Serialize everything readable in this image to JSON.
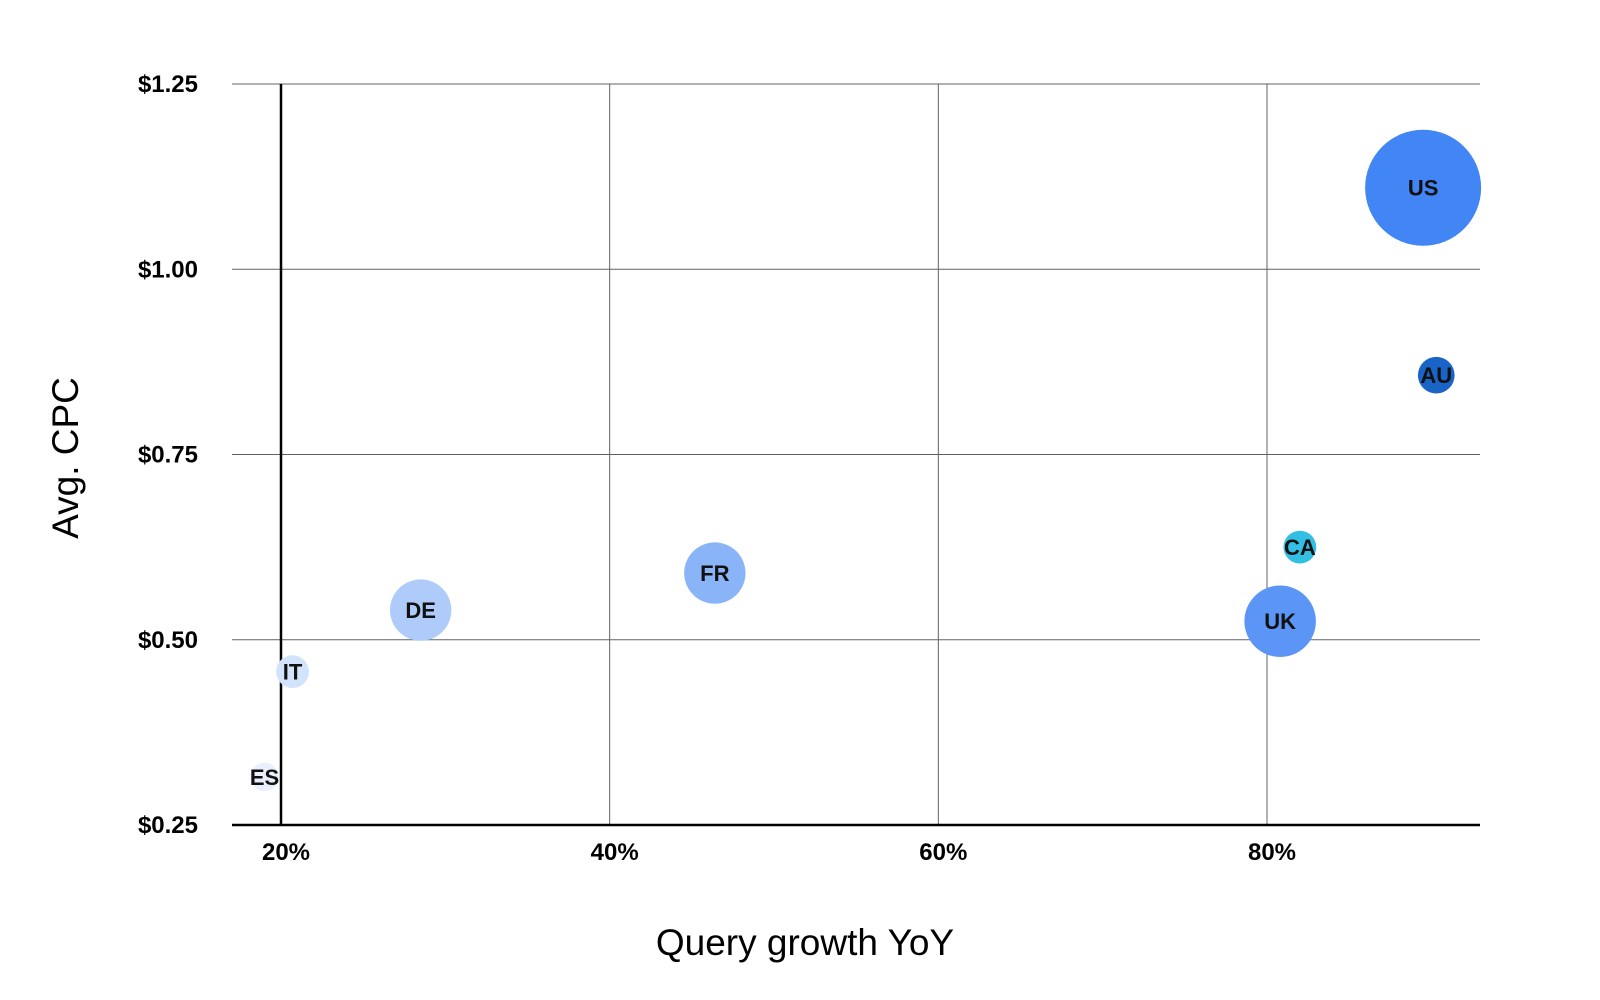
{
  "chart_data": {
    "type": "scatter",
    "title": "",
    "xlabel": "Query growth YoY",
    "ylabel": "Avg. CPC",
    "xlim": [
      0.185,
      0.93
    ],
    "ylim": [
      0.25,
      1.25
    ],
    "x_ticks": [
      {
        "value": 0.2,
        "label": "20%"
      },
      {
        "value": 0.4,
        "label": "40%"
      },
      {
        "value": 0.6,
        "label": "60%"
      },
      {
        "value": 0.8,
        "label": "80%"
      }
    ],
    "y_ticks": [
      {
        "value": 0.25,
        "label": "$0.25"
      },
      {
        "value": 0.5,
        "label": "$0.50"
      },
      {
        "value": 0.75,
        "label": "$0.75"
      },
      {
        "value": 1.0,
        "label": "$1.00"
      },
      {
        "value": 1.25,
        "label": "$1.25"
      }
    ],
    "grid": true,
    "legend": "none",
    "points": [
      {
        "label": "US",
        "x": 0.895,
        "y": 1.11,
        "size": 100,
        "color": "#4285f4"
      },
      {
        "label": "AU",
        "x": 0.903,
        "y": 0.857,
        "size": 10,
        "color": "#1a63c7"
      },
      {
        "label": "CA",
        "x": 0.82,
        "y": 0.625,
        "size": 8,
        "color": "#33bfe3"
      },
      {
        "label": "UK",
        "x": 0.808,
        "y": 0.525,
        "size": 38,
        "color": "#5b95f5"
      },
      {
        "label": "FR",
        "x": 0.464,
        "y": 0.59,
        "size": 28,
        "color": "#8ab4f8"
      },
      {
        "label": "DE",
        "x": 0.285,
        "y": 0.54,
        "size": 28,
        "color": "#aecbfa"
      },
      {
        "label": "IT",
        "x": 0.207,
        "y": 0.457,
        "size": 8,
        "color": "#d2e3fc"
      },
      {
        "label": "ES",
        "x": 0.19,
        "y": 0.315,
        "size": 6,
        "color": "#e8f0fe"
      }
    ]
  }
}
